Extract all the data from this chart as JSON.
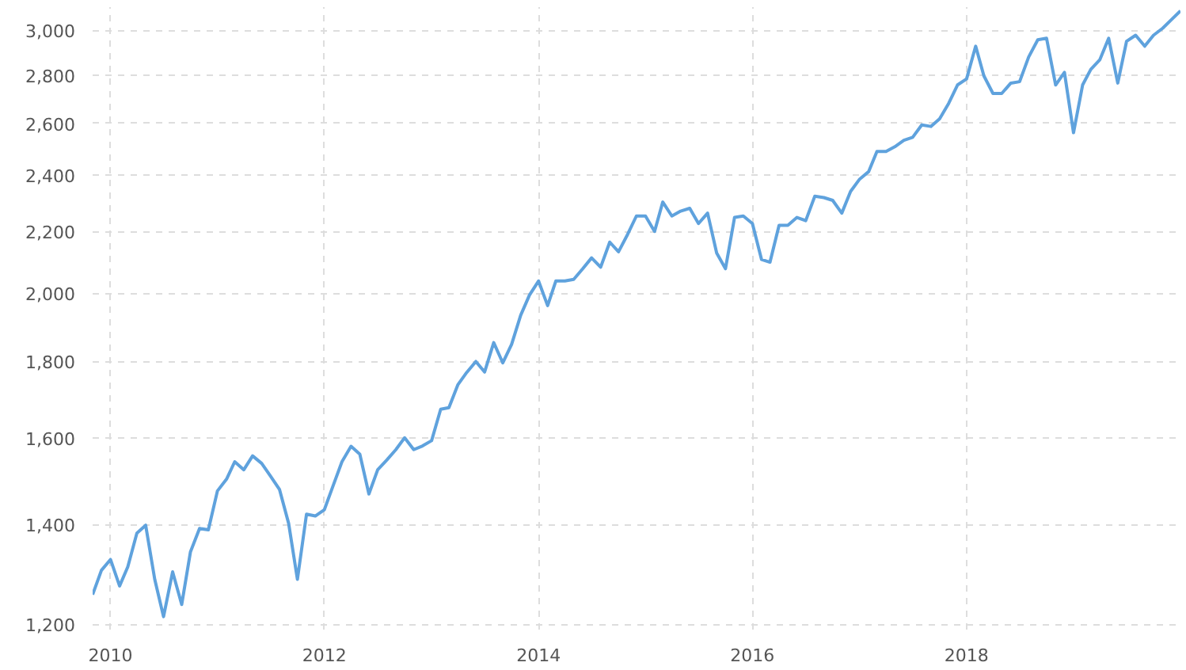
{
  "chart_data": {
    "type": "line",
    "log": "y",
    "grid": true,
    "line_style": "solid",
    "marker": "none",
    "xlim": [
      "2009-11",
      "2020-01"
    ],
    "xticks": [
      "2010",
      "2012",
      "2014",
      "2016",
      "2018"
    ],
    "ylim": [
      1190,
      3110
    ],
    "yticks": [
      {
        "value": 1200,
        "label": "1,200"
      },
      {
        "value": 1400,
        "label": "1,400"
      },
      {
        "value": 1600,
        "label": "1,600"
      },
      {
        "value": 1800,
        "label": "1,800"
      },
      {
        "value": 2000,
        "label": "2,000"
      },
      {
        "value": 2200,
        "label": "2,200"
      },
      {
        "value": 2400,
        "label": "2,400"
      },
      {
        "value": 2600,
        "label": "2,600"
      },
      {
        "value": 2800,
        "label": "2,800"
      },
      {
        "value": 3000,
        "label": "3,000"
      }
    ],
    "series": [
      {
        "color": "#5fa2dd",
        "x": [
          "2009-11",
          "2009-12",
          "2010-01",
          "2010-02",
          "2010-03",
          "2010-04",
          "2010-05",
          "2010-06",
          "2010-07",
          "2010-08",
          "2010-09",
          "2010-10",
          "2010-11",
          "2010-12",
          "2011-01",
          "2011-02",
          "2011-03",
          "2011-04",
          "2011-05",
          "2011-06",
          "2011-07",
          "2011-08",
          "2011-09",
          "2011-10",
          "2011-11",
          "2011-12",
          "2012-01",
          "2012-02",
          "2012-03",
          "2012-04",
          "2012-05",
          "2012-06",
          "2012-07",
          "2012-08",
          "2012-09",
          "2012-10",
          "2012-11",
          "2012-12",
          "2013-01",
          "2013-02",
          "2013-03",
          "2013-04",
          "2013-05",
          "2013-06",
          "2013-07",
          "2013-08",
          "2013-09",
          "2013-10",
          "2013-11",
          "2013-12",
          "2014-01",
          "2014-02",
          "2014-03",
          "2014-04",
          "2014-05",
          "2014-06",
          "2014-07",
          "2014-08",
          "2014-09",
          "2014-10",
          "2014-11",
          "2014-12",
          "2015-01",
          "2015-02",
          "2015-03",
          "2015-04",
          "2015-05",
          "2015-06",
          "2015-07",
          "2015-08",
          "2015-09",
          "2015-10",
          "2015-11",
          "2015-12",
          "2016-01",
          "2016-02",
          "2016-03",
          "2016-04",
          "2016-05",
          "2016-06",
          "2016-07",
          "2016-08",
          "2016-09",
          "2016-10",
          "2016-11",
          "2016-12",
          "2017-01",
          "2017-02",
          "2017-03",
          "2017-04",
          "2017-05",
          "2017-06",
          "2017-07",
          "2017-08",
          "2017-09",
          "2017-10",
          "2017-11",
          "2017-12",
          "2018-01",
          "2018-02",
          "2018-03",
          "2018-04",
          "2018-05",
          "2018-06",
          "2018-07",
          "2018-08",
          "2018-09",
          "2018-10",
          "2018-11",
          "2018-12",
          "2019-01",
          "2019-02",
          "2019-03",
          "2019-04",
          "2019-05",
          "2019-06",
          "2019-07",
          "2019-08",
          "2019-09",
          "2019-10",
          "2019-11",
          "2019-12",
          "2020-01"
        ],
        "values": [
          1256,
          1304,
          1326,
          1273,
          1311,
          1381,
          1398,
          1286,
          1214,
          1301,
          1237,
          1342,
          1391,
          1388,
          1474,
          1501,
          1542,
          1523,
          1556,
          1538,
          1508,
          1477,
          1402,
          1286,
          1422,
          1418,
          1432,
          1488,
          1542,
          1579,
          1560,
          1467,
          1523,
          1546,
          1571,
          1600,
          1571,
          1580,
          1593,
          1672,
          1676,
          1737,
          1770,
          1800,
          1771,
          1853,
          1796,
          1848,
          1933,
          1994,
          2038,
          1962,
          2038,
          2038,
          2043,
          2077,
          2112,
          2082,
          2164,
          2132,
          2190,
          2253,
          2253,
          2200,
          2302,
          2253,
          2270,
          2280,
          2227,
          2263,
          2128,
          2077,
          2248,
          2253,
          2227,
          2107,
          2098,
          2221,
          2221,
          2248,
          2237,
          2323,
          2318,
          2308,
          2263,
          2340,
          2385,
          2413,
          2489,
          2489,
          2507,
          2532,
          2544,
          2593,
          2587,
          2618,
          2681,
          2758,
          2784,
          2928,
          2797,
          2722,
          2722,
          2766,
          2772,
          2880,
          2957,
          2964,
          2758,
          2812,
          2562,
          2758,
          2825,
          2868,
          2964,
          2766,
          2950,
          2978,
          2928,
          2978,
          3010,
          3050,
          3092
        ]
      }
    ]
  }
}
